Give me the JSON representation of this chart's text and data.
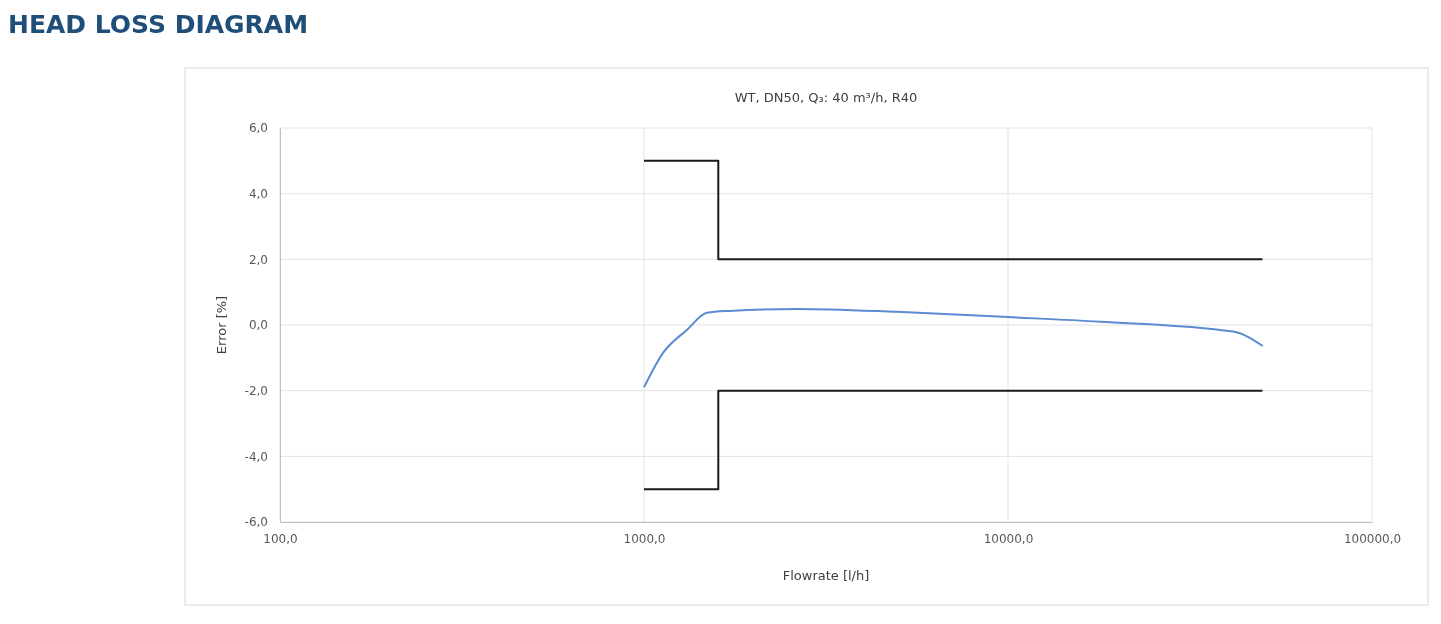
{
  "chart_data": {
    "type": "line",
    "title": "HEAD LOSS DIAGRAM",
    "subtitle": "WT, DN50, Q₃: 40 m³/h, R40",
    "xlabel": "Flowrate [l/h]",
    "ylabel": "Error [%]",
    "log": "x",
    "grid": true,
    "xlim": [
      100,
      100000
    ],
    "ylim": [
      -6,
      6
    ],
    "xticks": [
      {
        "value": 100,
        "label": "100,0"
      },
      {
        "value": 1000,
        "label": "1000,0"
      },
      {
        "value": 10000,
        "label": "10000,0"
      },
      {
        "value": 100000,
        "label": "100000,0"
      }
    ],
    "yticks": [
      {
        "value": -6,
        "label": "-6,0"
      },
      {
        "value": -4,
        "label": "-4,0"
      },
      {
        "value": -2,
        "label": "-2,0"
      },
      {
        "value": 0,
        "label": "0,0"
      },
      {
        "value": 2,
        "label": "2,0"
      },
      {
        "value": 4,
        "label": "4,0"
      },
      {
        "value": 6,
        "label": "6,0"
      }
    ],
    "series": [
      {
        "color": "#1a1a1a",
        "x": [
          1000,
          1600,
          1600,
          50000
        ],
        "values": [
          5,
          5,
          2,
          2
        ]
      },
      {
        "color": "#1a1a1a",
        "x": [
          1000,
          1600,
          1600,
          50000
        ],
        "values": [
          -5,
          -5,
          -2,
          -2
        ]
      },
      {
        "color": "#5b8bd0",
        "x": [
          1000,
          1128,
          1312,
          1489,
          1722,
          2630,
          4955,
          10000,
          17900,
          41500,
          50100
        ],
        "values": [
          -1.9,
          -0.85,
          -0.15,
          0.37,
          0.43,
          0.49,
          0.4,
          0.24,
          0.1,
          -0.2,
          -0.64
        ]
      }
    ]
  }
}
